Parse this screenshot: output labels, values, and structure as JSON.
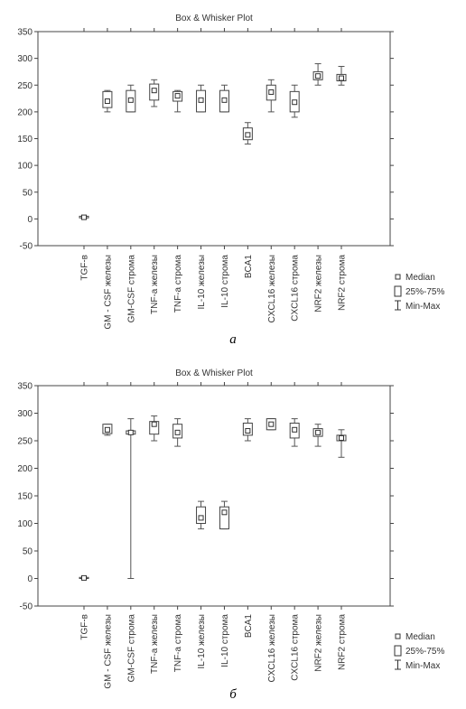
{
  "legend": {
    "median": "Median",
    "box": "25%-75%",
    "whisker": "Min-Max"
  },
  "chart_data": [
    {
      "type": "box",
      "title": "Box & Whisker Plot",
      "panel_label": "а",
      "ylim": [
        -50,
        350
      ],
      "yticks": [
        -50,
        0,
        50,
        100,
        150,
        200,
        250,
        300,
        350
      ],
      "grid": false,
      "legend_position": "right",
      "categories": [
        "TGF-в",
        "GM - CSF железы",
        "GM-CSF строма",
        "TNF-а железы",
        "TNF-а строма",
        "IL-10 железы",
        "IL-10 строма",
        "BCA1",
        "CXCL16 железы",
        "CXCL16 строма",
        "NRF2 железы",
        "NRF2 строма"
      ],
      "series": [
        {
          "median": 3,
          "q1": 2,
          "q3": 5,
          "min": 2,
          "max": 5
        },
        {
          "median": 220,
          "q1": 208,
          "q3": 238,
          "min": 200,
          "max": 240
        },
        {
          "median": 222,
          "q1": 200,
          "q3": 240,
          "min": 200,
          "max": 250
        },
        {
          "median": 240,
          "q1": 222,
          "q3": 252,
          "min": 210,
          "max": 260
        },
        {
          "median": 230,
          "q1": 220,
          "q3": 238,
          "min": 200,
          "max": 240
        },
        {
          "median": 222,
          "q1": 200,
          "q3": 240,
          "min": 200,
          "max": 250
        },
        {
          "median": 222,
          "q1": 200,
          "q3": 240,
          "min": 200,
          "max": 250
        },
        {
          "median": 157,
          "q1": 148,
          "q3": 170,
          "min": 140,
          "max": 180
        },
        {
          "median": 237,
          "q1": 222,
          "q3": 250,
          "min": 200,
          "max": 260
        },
        {
          "median": 218,
          "q1": 200,
          "q3": 238,
          "min": 190,
          "max": 250
        },
        {
          "median": 267,
          "q1": 260,
          "q3": 275,
          "min": 250,
          "max": 290
        },
        {
          "median": 263,
          "q1": 258,
          "q3": 270,
          "min": 250,
          "max": 285
        }
      ]
    },
    {
      "type": "box",
      "title": "Box & Whisker Plot",
      "panel_label": "б",
      "ylim": [
        -50,
        350
      ],
      "yticks": [
        -50,
        0,
        50,
        100,
        150,
        200,
        250,
        300,
        350
      ],
      "grid": false,
      "legend_position": "right",
      "categories": [
        "TGF-в",
        "GM - CSF железы",
        "GM-CSF строма",
        "TNF-а железы",
        "TNF-а строма",
        "IL-10 железы",
        "IL-10 строма",
        "BCA1",
        "CXCL16 железы",
        "CXCL16 строма",
        "NRF2 железы",
        "NRF2 строма"
      ],
      "series": [
        {
          "median": 1,
          "q1": 0,
          "q3": 2,
          "min": 0,
          "max": 2
        },
        {
          "median": 270,
          "q1": 263,
          "q3": 280,
          "min": 260,
          "max": 280
        },
        {
          "median": 265,
          "q1": 262,
          "q3": 268,
          "min": 0,
          "max": 290
        },
        {
          "median": 280,
          "q1": 262,
          "q3": 285,
          "min": 250,
          "max": 295
        },
        {
          "median": 265,
          "q1": 255,
          "q3": 280,
          "min": 240,
          "max": 290
        },
        {
          "median": 110,
          "q1": 100,
          "q3": 130,
          "min": 90,
          "max": 140
        },
        {
          "median": 120,
          "q1": 90,
          "q3": 130,
          "min": 90,
          "max": 140
        },
        {
          "median": 268,
          "q1": 260,
          "q3": 282,
          "min": 250,
          "max": 290
        },
        {
          "median": 280,
          "q1": 270,
          "q3": 290,
          "min": 270,
          "max": 290
        },
        {
          "median": 270,
          "q1": 255,
          "q3": 282,
          "min": 240,
          "max": 290
        },
        {
          "median": 265,
          "q1": 258,
          "q3": 272,
          "min": 240,
          "max": 280
        },
        {
          "median": 255,
          "q1": 250,
          "q3": 260,
          "min": 220,
          "max": 270
        }
      ]
    }
  ]
}
